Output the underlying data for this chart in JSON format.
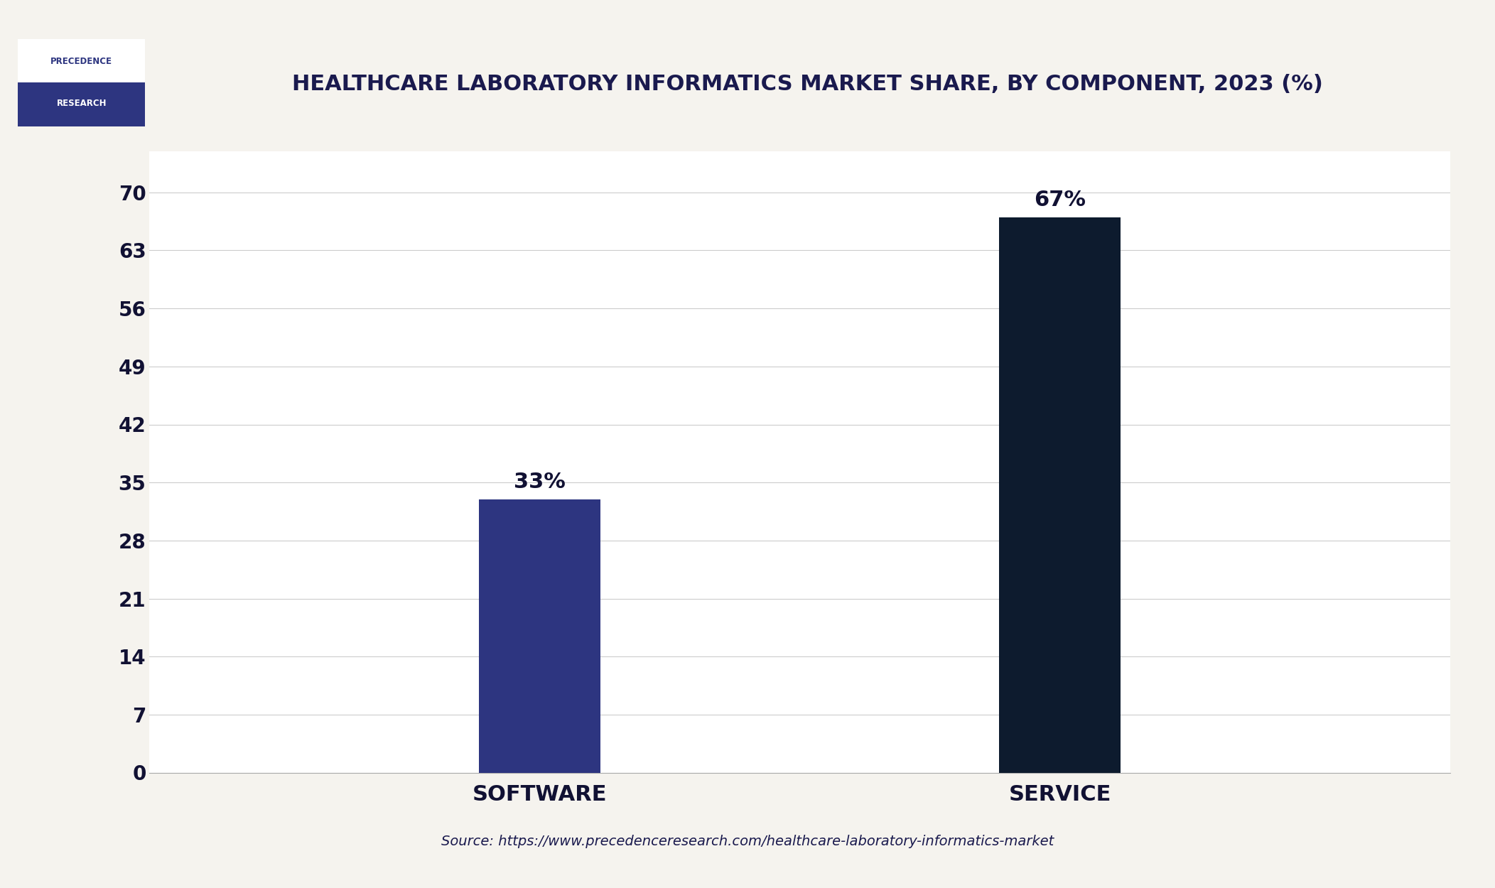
{
  "title": "HEALTHCARE LABORATORY INFORMATICS MARKET SHARE, BY COMPONENT, 2023 (%)",
  "categories": [
    "SOFTWARE",
    "SERVICE"
  ],
  "values": [
    33,
    67
  ],
  "bar_colors": [
    "#2d3580",
    "#0d1b2e"
  ],
  "bar_labels": [
    "33%",
    "67%"
  ],
  "yticks": [
    0,
    7,
    14,
    21,
    28,
    35,
    42,
    49,
    56,
    63,
    70
  ],
  "ylim": [
    0,
    75
  ],
  "xlim": [
    0,
    3.0
  ],
  "x_positions": [
    0.9,
    2.1
  ],
  "bar_width": 0.28,
  "background_color": "#f5f3ee",
  "plot_bg_color": "#ffffff",
  "title_color": "#1a1a4e",
  "axis_label_color": "#111133",
  "source_text": "Source: https://www.precedenceresearch.com/healthcare-laboratory-informatics-market",
  "logo_bottom_color": "#2d3580",
  "border_color": "#1e2d6b",
  "grid_color": "#cccccc"
}
